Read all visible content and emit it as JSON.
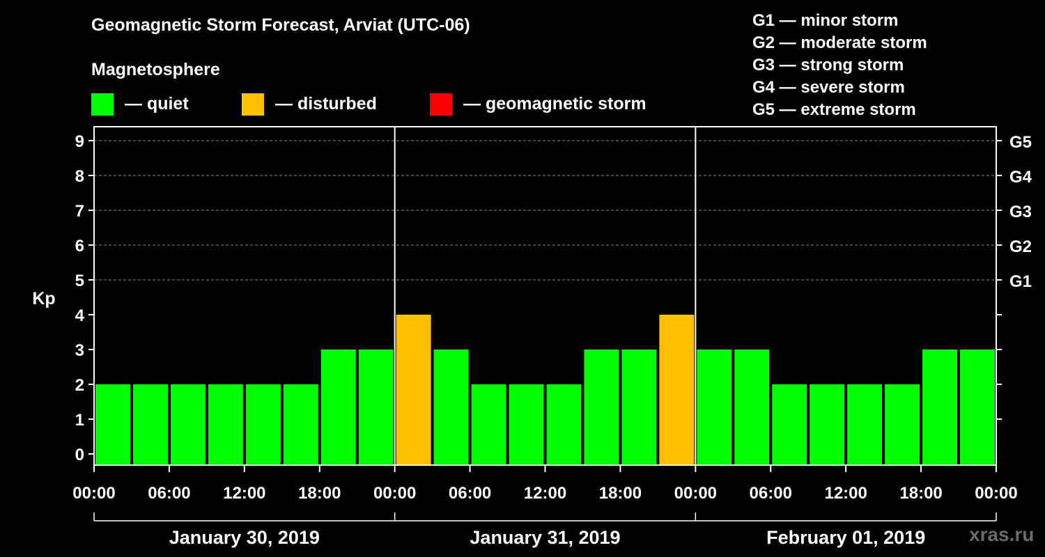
{
  "header": {
    "title": "Geomagnetic Storm Forecast, Arviat (UTC-06)",
    "subtitle": "Magnetosphere"
  },
  "legend": [
    {
      "label": "— quiet",
      "color": "#00ff00"
    },
    {
      "label": "— disturbed",
      "color": "#ffc000"
    },
    {
      "label": "— geomagnetic storm",
      "color": "#ff0000"
    }
  ],
  "storm_scale": [
    "G1 — minor storm",
    "G2 — moderate storm",
    "G3 — strong storm",
    "G4 — severe storm",
    "G5 — extreme storm"
  ],
  "watermark": "xras.ru",
  "chart_data": {
    "type": "bar",
    "ylabel": "Kp",
    "ylim": [
      0,
      9
    ],
    "yticks": [
      "0",
      "1",
      "2",
      "3",
      "4",
      "5",
      "6",
      "7",
      "8",
      "9"
    ],
    "right_ticks": [
      {
        "value": 5,
        "label": "G1"
      },
      {
        "value": 6,
        "label": "G2"
      },
      {
        "value": 7,
        "label": "G3"
      },
      {
        "value": 8,
        "label": "G4"
      },
      {
        "value": 9,
        "label": "G5"
      }
    ],
    "xtick_labels": [
      "00:00",
      "06:00",
      "12:00",
      "18:00",
      "00:00",
      "06:00",
      "12:00",
      "18:00",
      "00:00",
      "06:00",
      "12:00",
      "18:00",
      "00:00"
    ],
    "days": [
      "January 30, 2019",
      "January 31, 2019",
      "February 01, 2019"
    ],
    "bar_interval_hours": 3,
    "values": [
      2,
      2,
      2,
      2,
      2,
      2,
      3,
      3,
      4,
      3,
      2,
      2,
      2,
      3,
      3,
      4,
      3,
      3,
      2,
      2,
      2,
      2,
      3,
      3
    ],
    "colors": {
      "quiet": "#00ff00",
      "disturbed": "#ffc000",
      "storm": "#ff0000"
    },
    "thresholds": {
      "disturbed": 4,
      "storm": 5
    },
    "grid": "dashed horizontal at Kp 5-9"
  }
}
